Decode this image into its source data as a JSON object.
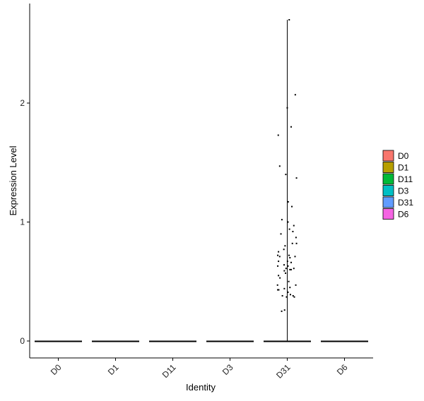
{
  "chart_data": {
    "type": "violin",
    "xlabel": "Identity",
    "ylabel": "Expression Level",
    "categories": [
      "D0",
      "D1",
      "D11",
      "D3",
      "D31",
      "D6"
    ],
    "yticks": [
      0,
      1,
      2
    ],
    "ylim": [
      -0.15,
      2.8
    ],
    "legend": {
      "placement": "right",
      "entries": [
        {
          "label": "D0",
          "color": "#F8766D"
        },
        {
          "label": "D1",
          "color": "#B79F00"
        },
        {
          "label": "D11",
          "color": "#00BA38"
        },
        {
          "label": "D3",
          "color": "#00BFC4"
        },
        {
          "label": "D31",
          "color": "#619CFF"
        },
        {
          "label": "D6",
          "color": "#F564E3"
        }
      ]
    },
    "series": [
      {
        "category": "D0",
        "violin_max": 0,
        "points": []
      },
      {
        "category": "D1",
        "violin_max": 0,
        "points": []
      },
      {
        "category": "D11",
        "violin_max": 0,
        "points": []
      },
      {
        "category": "D3",
        "violin_max": 0,
        "points": []
      },
      {
        "category": "D31",
        "violin_max": 2.7,
        "points": [
          {
            "x": 0.08,
            "y": 2.7
          },
          {
            "x": 0.33,
            "y": 2.07
          },
          {
            "x": 0.0,
            "y": 1.96
          },
          {
            "x": 0.16,
            "y": 1.8
          },
          {
            "x": -0.37,
            "y": 1.73
          },
          {
            "x": -0.31,
            "y": 1.47
          },
          {
            "x": -0.06,
            "y": 1.4
          },
          {
            "x": 0.38,
            "y": 1.37
          },
          {
            "x": 0.04,
            "y": 1.17
          },
          {
            "x": 0.19,
            "y": 1.13
          },
          {
            "x": -0.22,
            "y": 1.02
          },
          {
            "x": 0.03,
            "y": 1.0
          },
          {
            "x": 0.27,
            "y": 0.97
          },
          {
            "x": 0.09,
            "y": 0.94
          },
          {
            "x": 0.23,
            "y": 0.92
          },
          {
            "x": -0.26,
            "y": 0.9
          },
          {
            "x": 0.36,
            "y": 0.87
          },
          {
            "x": 0.21,
            "y": 0.82
          },
          {
            "x": 0.38,
            "y": 0.82
          },
          {
            "x": -0.09,
            "y": 0.8
          },
          {
            "x": -0.14,
            "y": 0.77
          },
          {
            "x": -0.36,
            "y": 0.75
          },
          {
            "x": -0.39,
            "y": 0.72
          },
          {
            "x": -0.31,
            "y": 0.71
          },
          {
            "x": 0.07,
            "y": 0.72
          },
          {
            "x": 0.11,
            "y": 0.7
          },
          {
            "x": 0.32,
            "y": 0.71
          },
          {
            "x": -0.36,
            "y": 0.67
          },
          {
            "x": 0.01,
            "y": 0.67
          },
          {
            "x": 0.16,
            "y": 0.66
          },
          {
            "x": -0.13,
            "y": 0.64
          },
          {
            "x": -0.39,
            "y": 0.63
          },
          {
            "x": 0.03,
            "y": 0.63
          },
          {
            "x": -0.05,
            "y": 0.61
          },
          {
            "x": 0.27,
            "y": 0.61
          },
          {
            "x": 0.11,
            "y": 0.6
          },
          {
            "x": 0.16,
            "y": 0.6
          },
          {
            "x": -0.12,
            "y": 0.59
          },
          {
            "x": -0.07,
            "y": 0.57
          },
          {
            "x": -0.36,
            "y": 0.55
          },
          {
            "x": -0.3,
            "y": 0.53
          },
          {
            "x": 0.06,
            "y": 0.5
          },
          {
            "x": -0.4,
            "y": 0.47
          },
          {
            "x": 0.35,
            "y": 0.47
          },
          {
            "x": 0.11,
            "y": 0.45
          },
          {
            "x": -0.12,
            "y": 0.44
          },
          {
            "x": -0.35,
            "y": 0.43
          },
          {
            "x": -0.39,
            "y": 0.43
          },
          {
            "x": 0.03,
            "y": 0.41
          },
          {
            "x": 0.13,
            "y": 0.39
          },
          {
            "x": -0.2,
            "y": 0.38
          },
          {
            "x": 0.24,
            "y": 0.38
          },
          {
            "x": 0.29,
            "y": 0.37
          },
          {
            "x": -0.03,
            "y": 0.37
          },
          {
            "x": -0.23,
            "y": 0.25
          },
          {
            "x": -0.11,
            "y": 0.26
          }
        ]
      },
      {
        "category": "D6",
        "violin_max": 0,
        "points": []
      }
    ]
  }
}
